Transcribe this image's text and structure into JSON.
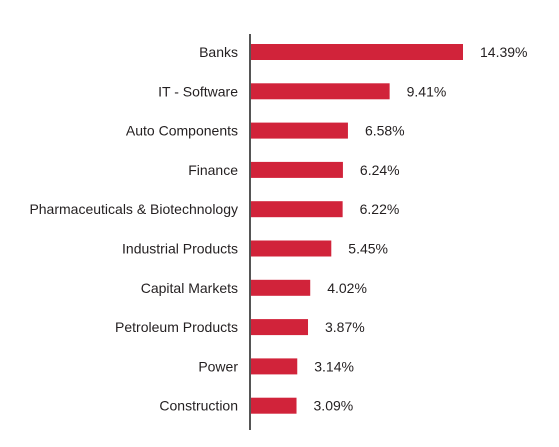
{
  "colors": {
    "bar": "#d1233a",
    "axis": "#555555",
    "text": "#231f20"
  },
  "chart_data": {
    "type": "bar",
    "orientation": "horizontal",
    "title": "",
    "xlabel": "",
    "ylabel": "",
    "grid": false,
    "unit": "%",
    "categories": [
      "Banks",
      "IT - Software",
      "Auto Components",
      "Finance",
      "Pharmaceuticals & Biotechnology",
      "Industrial Products",
      "Capital Markets",
      "Petroleum Products",
      "Power",
      "Construction"
    ],
    "values": [
      14.39,
      9.41,
      6.58,
      6.24,
      6.22,
      5.45,
      4.02,
      3.87,
      3.14,
      3.09
    ],
    "value_labels": [
      "14.39%",
      "9.41%",
      "6.58%",
      "6.24%",
      "6.22%",
      "5.45%",
      "4.02%",
      "3.87%",
      "3.14%",
      "3.09%"
    ],
    "xlim": [
      0,
      14.39
    ]
  }
}
